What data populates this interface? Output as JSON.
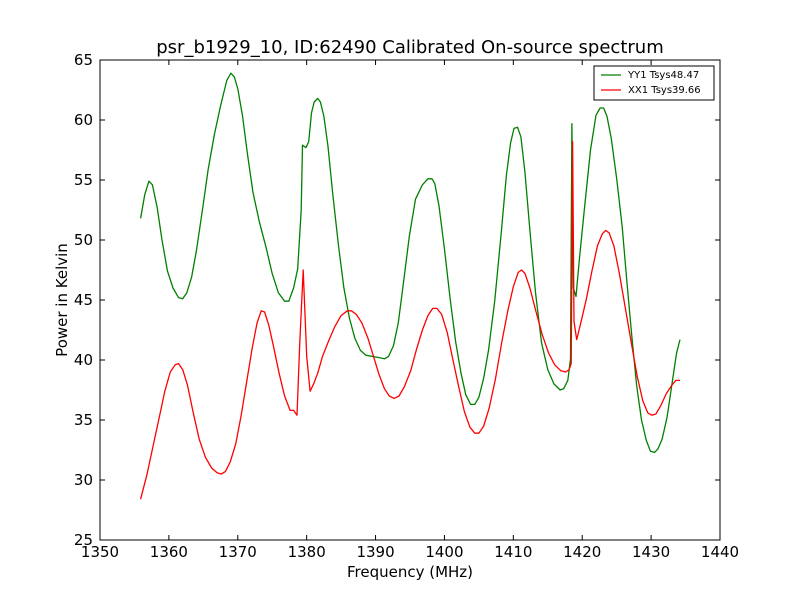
{
  "chart_data": {
    "type": "line",
    "title": "psr_b1929_10, ID:62490 Calibrated On-source spectrum",
    "xlabel": "Frequency (MHz)",
    "ylabel": "Power in Kelvin",
    "xlim": [
      1350,
      1440
    ],
    "ylim": [
      25,
      65
    ],
    "xticks": [
      1350,
      1360,
      1370,
      1380,
      1390,
      1400,
      1410,
      1420,
      1430,
      1440
    ],
    "yticks": [
      25,
      30,
      35,
      40,
      45,
      50,
      55,
      60,
      65
    ],
    "grid": false,
    "legend_position": "top-right",
    "series": [
      {
        "name": "YY1 Tsys48.47",
        "color": "#008000",
        "points": [
          [
            1355.9,
            51.8
          ],
          [
            1356.5,
            53.8
          ],
          [
            1357.1,
            54.9
          ],
          [
            1357.6,
            54.6
          ],
          [
            1358.3,
            52.7
          ],
          [
            1359.0,
            50.0
          ],
          [
            1359.8,
            47.4
          ],
          [
            1360.6,
            46.0
          ],
          [
            1361.4,
            45.2
          ],
          [
            1362.0,
            45.1
          ],
          [
            1362.6,
            45.6
          ],
          [
            1363.3,
            46.9
          ],
          [
            1364.0,
            49.1
          ],
          [
            1364.9,
            52.6
          ],
          [
            1365.7,
            55.9
          ],
          [
            1366.6,
            58.8
          ],
          [
            1367.5,
            61.2
          ],
          [
            1368.4,
            63.3
          ],
          [
            1369.0,
            63.9
          ],
          [
            1369.5,
            63.6
          ],
          [
            1370.0,
            62.6
          ],
          [
            1370.7,
            60.3
          ],
          [
            1371.4,
            57.2
          ],
          [
            1372.2,
            54.0
          ],
          [
            1373.1,
            51.6
          ],
          [
            1374.1,
            49.4
          ],
          [
            1375.0,
            47.2
          ],
          [
            1375.9,
            45.6
          ],
          [
            1376.8,
            44.9
          ],
          [
            1377.4,
            44.9
          ],
          [
            1378.1,
            46.0
          ],
          [
            1378.7,
            47.6
          ],
          [
            1379.2,
            52.5
          ],
          [
            1379.4,
            57.9
          ],
          [
            1379.9,
            57.7
          ],
          [
            1380.3,
            58.2
          ],
          [
            1380.7,
            60.6
          ],
          [
            1381.1,
            61.5
          ],
          [
            1381.6,
            61.8
          ],
          [
            1382.0,
            61.5
          ],
          [
            1382.5,
            60.3
          ],
          [
            1383.1,
            57.8
          ],
          [
            1383.8,
            53.8
          ],
          [
            1384.6,
            49.6
          ],
          [
            1385.4,
            46.0
          ],
          [
            1386.2,
            43.5
          ],
          [
            1387.0,
            41.8
          ],
          [
            1387.8,
            40.8
          ],
          [
            1388.6,
            40.4
          ],
          [
            1389.5,
            40.3
          ],
          [
            1390.5,
            40.2
          ],
          [
            1391.3,
            40.1
          ],
          [
            1391.9,
            40.3
          ],
          [
            1392.6,
            41.2
          ],
          [
            1393.3,
            43.1
          ],
          [
            1394.0,
            46.2
          ],
          [
            1394.9,
            50.3
          ],
          [
            1395.8,
            53.4
          ],
          [
            1396.8,
            54.6
          ],
          [
            1397.6,
            55.1
          ],
          [
            1398.2,
            55.1
          ],
          [
            1398.6,
            54.7
          ],
          [
            1399.2,
            52.9
          ],
          [
            1400.0,
            49.3
          ],
          [
            1400.8,
            45.2
          ],
          [
            1401.6,
            41.6
          ],
          [
            1402.4,
            38.9
          ],
          [
            1403.1,
            37.1
          ],
          [
            1403.8,
            36.3
          ],
          [
            1404.4,
            36.3
          ],
          [
            1405.0,
            36.9
          ],
          [
            1405.7,
            38.5
          ],
          [
            1406.4,
            40.8
          ],
          [
            1407.3,
            44.9
          ],
          [
            1408.2,
            50.3
          ],
          [
            1409.0,
            55.4
          ],
          [
            1409.6,
            58.1
          ],
          [
            1410.1,
            59.3
          ],
          [
            1410.6,
            59.4
          ],
          [
            1411.1,
            58.6
          ],
          [
            1411.7,
            55.6
          ],
          [
            1412.4,
            50.8
          ],
          [
            1413.2,
            45.7
          ],
          [
            1414.1,
            41.4
          ],
          [
            1415.0,
            39.2
          ],
          [
            1415.9,
            38.0
          ],
          [
            1416.8,
            37.5
          ],
          [
            1417.3,
            37.6
          ],
          [
            1417.9,
            38.3
          ],
          [
            1418.3,
            40.1
          ],
          [
            1418.5,
            59.7
          ],
          [
            1418.7,
            46.0
          ],
          [
            1419.1,
            45.3
          ],
          [
            1419.6,
            48.5
          ],
          [
            1420.3,
            52.5
          ],
          [
            1421.2,
            57.5
          ],
          [
            1422.0,
            60.4
          ],
          [
            1422.6,
            61.0
          ],
          [
            1423.1,
            61.0
          ],
          [
            1423.6,
            60.3
          ],
          [
            1424.2,
            58.5
          ],
          [
            1425.0,
            55.1
          ],
          [
            1425.8,
            51.1
          ],
          [
            1426.5,
            46.4
          ],
          [
            1427.2,
            42.0
          ],
          [
            1427.9,
            37.9
          ],
          [
            1428.6,
            35.0
          ],
          [
            1429.3,
            33.3
          ],
          [
            1429.9,
            32.4
          ],
          [
            1430.5,
            32.3
          ],
          [
            1431.0,
            32.6
          ],
          [
            1431.6,
            33.4
          ],
          [
            1432.3,
            35.2
          ],
          [
            1433.0,
            37.9
          ],
          [
            1433.7,
            40.6
          ],
          [
            1434.2,
            41.7
          ]
        ]
      },
      {
        "name": "XX1 Tsys39.66",
        "color": "#ff0000",
        "points": [
          [
            1355.9,
            28.4
          ],
          [
            1356.8,
            30.4
          ],
          [
            1357.7,
            32.8
          ],
          [
            1358.6,
            35.2
          ],
          [
            1359.4,
            37.4
          ],
          [
            1360.2,
            39.0
          ],
          [
            1360.9,
            39.6
          ],
          [
            1361.4,
            39.7
          ],
          [
            1362.0,
            39.2
          ],
          [
            1362.7,
            37.9
          ],
          [
            1363.5,
            35.7
          ],
          [
            1364.4,
            33.4
          ],
          [
            1365.3,
            31.9
          ],
          [
            1366.2,
            31.0
          ],
          [
            1367.0,
            30.6
          ],
          [
            1367.6,
            30.5
          ],
          [
            1368.2,
            30.7
          ],
          [
            1368.9,
            31.5
          ],
          [
            1369.7,
            33.0
          ],
          [
            1370.5,
            35.4
          ],
          [
            1371.3,
            38.2
          ],
          [
            1372.1,
            41.0
          ],
          [
            1372.8,
            43.1
          ],
          [
            1373.4,
            44.1
          ],
          [
            1373.9,
            44.0
          ],
          [
            1374.5,
            42.9
          ],
          [
            1375.2,
            41.1
          ],
          [
            1376.0,
            38.9
          ],
          [
            1376.8,
            37.0
          ],
          [
            1377.6,
            35.8
          ],
          [
            1378.1,
            35.8
          ],
          [
            1378.6,
            35.4
          ],
          [
            1379.0,
            41.5
          ],
          [
            1379.5,
            47.5
          ],
          [
            1380.0,
            40.3
          ],
          [
            1380.5,
            37.4
          ],
          [
            1381.0,
            38.0
          ],
          [
            1381.6,
            38.9
          ],
          [
            1382.3,
            40.3
          ],
          [
            1383.2,
            41.6
          ],
          [
            1384.1,
            42.8
          ],
          [
            1385.0,
            43.7
          ],
          [
            1385.9,
            44.1
          ],
          [
            1386.5,
            44.1
          ],
          [
            1387.2,
            43.8
          ],
          [
            1388.0,
            43.1
          ],
          [
            1388.9,
            41.8
          ],
          [
            1389.7,
            40.3
          ],
          [
            1390.5,
            38.8
          ],
          [
            1391.3,
            37.6
          ],
          [
            1392.0,
            37.0
          ],
          [
            1392.7,
            36.8
          ],
          [
            1393.4,
            37.0
          ],
          [
            1394.2,
            37.8
          ],
          [
            1395.1,
            39.1
          ],
          [
            1395.9,
            40.8
          ],
          [
            1396.8,
            42.5
          ],
          [
            1397.6,
            43.7
          ],
          [
            1398.3,
            44.3
          ],
          [
            1398.9,
            44.3
          ],
          [
            1399.6,
            43.8
          ],
          [
            1400.4,
            42.3
          ],
          [
            1401.2,
            40.1
          ],
          [
            1402.1,
            37.7
          ],
          [
            1402.9,
            35.7
          ],
          [
            1403.7,
            34.4
          ],
          [
            1404.4,
            33.9
          ],
          [
            1405.0,
            33.9
          ],
          [
            1405.7,
            34.5
          ],
          [
            1406.5,
            36.0
          ],
          [
            1407.4,
            38.4
          ],
          [
            1408.3,
            41.4
          ],
          [
            1409.2,
            44.1
          ],
          [
            1410.0,
            46.1
          ],
          [
            1410.7,
            47.3
          ],
          [
            1411.2,
            47.5
          ],
          [
            1411.7,
            47.2
          ],
          [
            1412.4,
            46.0
          ],
          [
            1413.3,
            44.0
          ],
          [
            1414.2,
            42.1
          ],
          [
            1415.1,
            40.6
          ],
          [
            1416.0,
            39.6
          ],
          [
            1416.9,
            39.1
          ],
          [
            1417.6,
            39.0
          ],
          [
            1418.1,
            39.2
          ],
          [
            1418.4,
            39.7
          ],
          [
            1418.6,
            58.2
          ],
          [
            1418.8,
            43.2
          ],
          [
            1419.2,
            41.7
          ],
          [
            1419.8,
            43.1
          ],
          [
            1420.6,
            45.1
          ],
          [
            1421.4,
            47.4
          ],
          [
            1422.2,
            49.5
          ],
          [
            1422.9,
            50.5
          ],
          [
            1423.4,
            50.8
          ],
          [
            1423.9,
            50.6
          ],
          [
            1424.6,
            49.5
          ],
          [
            1425.4,
            47.2
          ],
          [
            1426.3,
            44.2
          ],
          [
            1427.2,
            41.2
          ],
          [
            1428.0,
            38.6
          ],
          [
            1428.8,
            36.6
          ],
          [
            1429.5,
            35.6
          ],
          [
            1430.1,
            35.4
          ],
          [
            1430.7,
            35.5
          ],
          [
            1431.4,
            36.2
          ],
          [
            1432.2,
            37.2
          ],
          [
            1433.0,
            37.9
          ],
          [
            1433.6,
            38.3
          ],
          [
            1434.2,
            38.3
          ]
        ]
      }
    ]
  }
}
